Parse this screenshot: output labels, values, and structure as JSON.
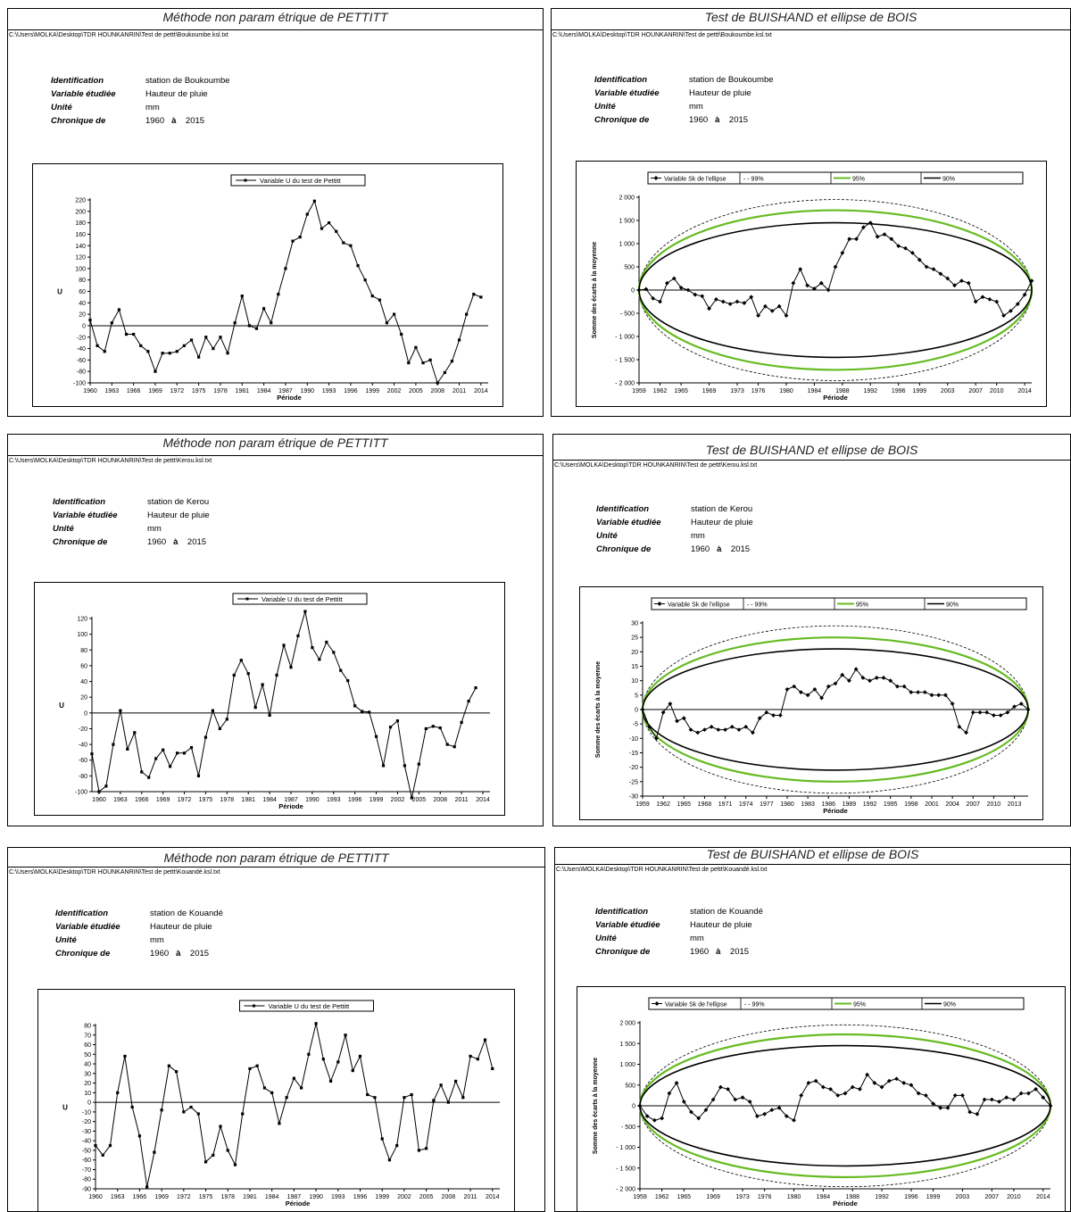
{
  "panels": [
    {
      "title": "Méthode non param étrique de PETTITT",
      "path": "C:\\Users\\MOLKA\\Desktop\\TDR HOUNKANRIN\\Test de pettt\\Boukoumbe.ksl.txt",
      "info": {
        "identification_label": "Identification",
        "identification_value": "station de Boukoumbe",
        "variable_label": "Variable étudiée",
        "variable_value": "Hauteur de pluie",
        "unit_label": "Unité",
        "unit_value": "mm",
        "chronique_label": "Chronique de",
        "year_start": "1960",
        "a_label": "à",
        "year_end": "2015"
      }
    },
    {
      "title": "Test de BUISHAND et ellipse de BOIS",
      "path": "C:\\Users\\MOLKA\\Desktop\\TDR HOUNKANRIN\\Test de pettt\\Boukoumbe.ksl.txt",
      "info": {
        "identification_label": "Identification",
        "identification_value": "station de Boukoumbe",
        "variable_label": "Variable étudiée",
        "variable_value": "Hauteur de pluie",
        "unit_label": "Unité",
        "unit_value": "mm",
        "chronique_label": "Chronique de",
        "year_start": "1960",
        "a_label": "à",
        "year_end": "2015"
      }
    },
    {
      "title": "Méthode non param étrique de PETTITT",
      "path": "C:\\Users\\MOLKA\\Desktop\\TDR HOUNKANRIN\\Test de pettt\\Kerou.ksl.txt",
      "info": {
        "identification_label": "Identification",
        "identification_value": "station de Kerou",
        "variable_label": "Variable étudiée",
        "variable_value": "Hauteur de pluie",
        "unit_label": "Unité",
        "unit_value": "mm",
        "chronique_label": "Chronique de",
        "year_start": "1960",
        "a_label": "à",
        "year_end": "2015"
      }
    },
    {
      "title": "Test de BUISHAND et ellipse de BOIS",
      "path": "C:\\Users\\MOLKA\\Desktop\\TDR HOUNKANRIN\\Test de pettt\\Kerou.ksl.txt",
      "info": {
        "identification_label": "Identification",
        "identification_value": "station de Kerou",
        "variable_label": "Variable étudiée",
        "variable_value": "Hauteur de pluie",
        "unit_label": "Unité",
        "unit_value": "mm",
        "chronique_label": "Chronique de",
        "year_start": "1960",
        "a_label": "à",
        "year_end": "2015"
      }
    },
    {
      "title": "Méthode non param étrique de PETTITT",
      "path": "C:\\Users\\MOLKA\\Desktop\\TDR HOUNKANRIN\\Test de pettt\\Kouandé.ksl.txt",
      "info": {
        "identification_label": "Identification",
        "identification_value": "station de Kouandé",
        "variable_label": "Variable étudiée",
        "variable_value": "Hauteur de pluie",
        "unit_label": "Unité",
        "unit_value": "mm",
        "chronique_label": "Chronique de",
        "year_start": "1960",
        "a_label": "à",
        "year_end": "2015"
      }
    },
    {
      "title": "Test de BUISHAND et ellipse de BOIS",
      "path": "C:\\Users\\MOLKA\\Desktop\\TDR HOUNKANRIN\\Test de pettt\\Kouandé.ksl.txt",
      "info": {
        "identification_label": "Identification",
        "identification_value": "station de Kouandé",
        "variable_label": "Variable étudiée",
        "variable_value": "Hauteur de pluie",
        "unit_label": "Unité",
        "unit_value": "mm",
        "chronique_label": "Chronique de",
        "year_start": "1960",
        "a_label": "à",
        "year_end": "2015"
      }
    }
  ],
  "chart_data": [
    {
      "type": "line",
      "legend": "Variable U du test de Pettitt",
      "ylabel": "U",
      "xlabel": "Période",
      "ylim": [
        -100,
        220
      ],
      "yticks": [
        -100,
        -80,
        -60,
        -40,
        -20,
        0,
        20,
        40,
        60,
        80,
        100,
        120,
        140,
        160,
        180,
        200,
        220
      ],
      "xlim": [
        1960,
        2015
      ],
      "xticks": [
        1960,
        1963,
        1966,
        1969,
        1972,
        1975,
        1978,
        1981,
        1984,
        1987,
        1990,
        1993,
        1996,
        1999,
        2002,
        2005,
        2008,
        2011,
        2014
      ],
      "x": [
        1960,
        1961,
        1962,
        1963,
        1964,
        1965,
        1966,
        1967,
        1968,
        1969,
        1970,
        1971,
        1972,
        1973,
        1974,
        1975,
        1976,
        1977,
        1978,
        1979,
        1980,
        1981,
        1982,
        1983,
        1984,
        1985,
        1986,
        1987,
        1988,
        1989,
        1990,
        1991,
        1992,
        1993,
        1994,
        1995,
        1996,
        1997,
        1998,
        1999,
        2000,
        2001,
        2002,
        2003,
        2004,
        2005,
        2006,
        2007,
        2008,
        2009,
        2010,
        2011,
        2012,
        2013,
        2014
      ],
      "values": [
        10,
        -35,
        -45,
        5,
        28,
        -15,
        -15,
        -35,
        -45,
        -80,
        -48,
        -48,
        -45,
        -35,
        -25,
        -55,
        -20,
        -40,
        -20,
        -48,
        5,
        52,
        0,
        -5,
        30,
        5,
        55,
        100,
        148,
        155,
        195,
        218,
        170,
        180,
        165,
        145,
        140,
        105,
        80,
        52,
        45,
        5,
        20,
        -15,
        -65,
        -38,
        -65,
        -60,
        -100,
        -82,
        -62,
        -25,
        20,
        55,
        50
      ]
    },
    {
      "type": "line",
      "legend": [
        "Variable Sk de l'ellipse",
        "- - 99%",
        "95%",
        "90%"
      ],
      "ylabel": "Somme des écarts à la moyenne",
      "xlabel": "Période",
      "ylim": [
        -2000,
        2000
      ],
      "yticks": [
        -2000,
        -1500,
        -1000,
        -500,
        0,
        500,
        1000,
        1500,
        2000
      ],
      "ytick_labels": [
        "- 2 000",
        "- 1 500",
        "- 1 000",
        "- 500",
        "0",
        "500",
        "1 000",
        "1 500",
        "2 000"
      ],
      "xlim": [
        1959,
        2015
      ],
      "xticks": [
        1959,
        1962,
        1965,
        1969,
        1973,
        1976,
        1980,
        1984,
        1988,
        1992,
        1996,
        1999,
        2003,
        2007,
        2010,
        2014
      ],
      "ellipse_half_height": {
        "99%": 1950,
        "95%": 1720,
        "90%": 1450
      },
      "colors": {
        "99%": "#000000",
        "95%": "#66bb22",
        "90%": "#000000"
      },
      "x": [
        1959,
        1960,
        1961,
        1962,
        1963,
        1964,
        1965,
        1966,
        1967,
        1968,
        1969,
        1970,
        1971,
        1972,
        1973,
        1974,
        1975,
        1976,
        1977,
        1978,
        1979,
        1980,
        1981,
        1982,
        1983,
        1984,
        1985,
        1986,
        1987,
        1988,
        1989,
        1990,
        1991,
        1992,
        1993,
        1994,
        1995,
        1996,
        1997,
        1998,
        1999,
        2000,
        2001,
        2002,
        2003,
        2004,
        2005,
        2006,
        2007,
        2008,
        2009,
        2010,
        2011,
        2012,
        2013,
        2014,
        2015
      ],
      "values": [
        0,
        20,
        -180,
        -250,
        150,
        250,
        50,
        0,
        -100,
        -130,
        -400,
        -200,
        -250,
        -300,
        -250,
        -280,
        -150,
        -550,
        -350,
        -450,
        -350,
        -550,
        150,
        450,
        100,
        30,
        150,
        0,
        500,
        800,
        1100,
        1100,
        1350,
        1450,
        1150,
        1200,
        1100,
        950,
        900,
        800,
        650,
        500,
        450,
        350,
        250,
        100,
        200,
        150,
        -250,
        -150,
        -200,
        -250,
        -550,
        -450,
        -300,
        -100,
        200
      ]
    },
    {
      "type": "line",
      "legend": "Variable U du test de Pettitt",
      "ylabel": "U",
      "xlabel": "Période",
      "ylim": [
        -100,
        120
      ],
      "yticks": [
        -100,
        -80,
        -60,
        -40,
        -20,
        0,
        20,
        40,
        60,
        80,
        100,
        120
      ],
      "xlim": [
        1959,
        2015
      ],
      "xticks": [
        1960,
        1963,
        1966,
        1969,
        1972,
        1975,
        1978,
        1981,
        1984,
        1987,
        1990,
        1993,
        1996,
        1999,
        2002,
        2005,
        2008,
        2011,
        2014
      ],
      "x": [
        1959,
        1960,
        1961,
        1962,
        1963,
        1964,
        1965,
        1966,
        1967,
        1968,
        1969,
        1970,
        1971,
        1972,
        1973,
        1974,
        1975,
        1976,
        1977,
        1978,
        1979,
        1980,
        1981,
        1982,
        1983,
        1984,
        1985,
        1986,
        1987,
        1988,
        1989,
        1990,
        1991,
        1992,
        1993,
        1994,
        1995,
        1996,
        1997,
        1998,
        1999,
        2000,
        2001,
        2002,
        2003,
        2004,
        2005,
        2006,
        2007,
        2008,
        2009,
        2010,
        2011,
        2012,
        2013,
        2014
      ],
      "values": [
        -52,
        -100,
        -93,
        -40,
        3,
        -46,
        -25,
        -75,
        -82,
        -58,
        -47,
        -68,
        -51,
        -51,
        -44,
        -80,
        -31,
        3,
        -20,
        -8,
        48,
        67,
        50,
        7,
        36,
        -3,
        48,
        86,
        58,
        98,
        129,
        83,
        68,
        90,
        77,
        54,
        41,
        9,
        2,
        1,
        -30,
        -67,
        -18,
        -10,
        -67,
        -108,
        -65,
        -20,
        -17,
        -19,
        -40,
        -43,
        -12,
        15,
        32,
        null
      ]
    },
    {
      "type": "line",
      "legend": [
        "Variable Sk de l'ellipse",
        "- - 99%",
        "95%",
        "90%"
      ],
      "ylabel": "Somme des écarts à la moyenne",
      "xlabel": "Période",
      "ylim": [
        -30,
        30
      ],
      "yticks": [
        -30,
        -25,
        -20,
        -15,
        -10,
        -5,
        0,
        5,
        10,
        15,
        20,
        25,
        30
      ],
      "ytick_labels": [
        "-30",
        "-25",
        "-20",
        "-15",
        "-10",
        "-5",
        "0",
        "5",
        "10",
        "15",
        "20",
        "25",
        "30"
      ],
      "xlim": [
        1959,
        2015
      ],
      "xticks": [
        1959,
        1962,
        1965,
        1968,
        1971,
        1974,
        1977,
        1980,
        1983,
        1986,
        1989,
        1992,
        1995,
        1998,
        2001,
        2004,
        2007,
        2010,
        2013
      ],
      "ellipse_half_height": {
        "99%": 29,
        "95%": 25,
        "90%": 21
      },
      "colors": {
        "99%": "#000000",
        "95%": "#66bb22",
        "90%": "#000000"
      },
      "x": [
        1959,
        1960,
        1961,
        1962,
        1963,
        1964,
        1965,
        1966,
        1967,
        1968,
        1969,
        1970,
        1971,
        1972,
        1973,
        1974,
        1975,
        1976,
        1977,
        1978,
        1979,
        1980,
        1981,
        1982,
        1983,
        1984,
        1985,
        1986,
        1987,
        1988,
        1989,
        1990,
        1991,
        1992,
        1993,
        1994,
        1995,
        1996,
        1997,
        1998,
        1999,
        2000,
        2001,
        2002,
        2003,
        2004,
        2005,
        2006,
        2007,
        2008,
        2009,
        2010,
        2011,
        2012,
        2013,
        2014,
        2015
      ],
      "values": [
        0,
        -6,
        -10,
        -1,
        2,
        -4,
        -3,
        -7,
        -8,
        -7,
        -6,
        -7,
        -7,
        -6,
        -7,
        -6,
        -8,
        -3,
        -1,
        -2,
        -2,
        7,
        8,
        6,
        5,
        7,
        4,
        8,
        9,
        12,
        10,
        14,
        11,
        10,
        11,
        11,
        10,
        8,
        8,
        6,
        6,
        6,
        5,
        5,
        5,
        2,
        -6,
        -8,
        -1,
        -1,
        -1,
        -2,
        -2,
        -1,
        1,
        2,
        0
      ]
    },
    {
      "type": "line",
      "legend": "Variable U du test de Pettitt",
      "ylabel": "U",
      "xlabel": "Période",
      "ylim": [
        -90,
        80
      ],
      "yticks": [
        -90,
        -80,
        -70,
        -60,
        -50,
        -40,
        -30,
        -20,
        -10,
        0,
        10,
        20,
        30,
        40,
        50,
        60,
        70,
        80
      ],
      "xlim": [
        1960,
        2015
      ],
      "xticks": [
        1960,
        1963,
        1966,
        1969,
        1972,
        1975,
        1978,
        1981,
        1984,
        1987,
        1990,
        1993,
        1996,
        1999,
        2002,
        2005,
        2008,
        2011,
        2014
      ],
      "x": [
        1960,
        1961,
        1962,
        1963,
        1964,
        1965,
        1966,
        1967,
        1968,
        1969,
        1970,
        1971,
        1972,
        1973,
        1974,
        1975,
        1976,
        1977,
        1978,
        1979,
        1980,
        1981,
        1982,
        1983,
        1984,
        1985,
        1986,
        1987,
        1988,
        1989,
        1990,
        1991,
        1992,
        1993,
        1994,
        1995,
        1996,
        1997,
        1998,
        1999,
        2000,
        2001,
        2002,
        2003,
        2004,
        2005,
        2006,
        2007,
        2008,
        2009,
        2010,
        2011,
        2012,
        2013,
        2014
      ],
      "values": [
        -45,
        -55,
        -45,
        10,
        48,
        -5,
        -35,
        -88,
        -52,
        -8,
        38,
        32,
        -10,
        -5,
        -12,
        -62,
        -55,
        -25,
        -50,
        -65,
        -12,
        35,
        38,
        15,
        10,
        -22,
        5,
        25,
        15,
        50,
        82,
        45,
        22,
        42,
        70,
        33,
        48,
        8,
        5,
        -38,
        -60,
        -45,
        5,
        8,
        -50,
        -48,
        2,
        18,
        0,
        22,
        5,
        48,
        45,
        65,
        35
      ]
    },
    {
      "type": "line",
      "legend": [
        "Variable Sk de l'ellipse",
        "- - 99%",
        "95%",
        "90%"
      ],
      "ylabel": "Somme des écarts à la moyenne",
      "xlabel": "Période",
      "ylim": [
        -2000,
        2000
      ],
      "yticks": [
        -2000,
        -1500,
        -1000,
        -500,
        0,
        500,
        1000,
        1500,
        2000
      ],
      "ytick_labels": [
        "- 2 000",
        "- 1 500",
        "- 1 000",
        "- 500",
        "0",
        "500",
        "1 000",
        "1 500",
        "2 000"
      ],
      "xlim": [
        1959,
        2015
      ],
      "xticks": [
        1959,
        1962,
        1965,
        1969,
        1973,
        1976,
        1980,
        1984,
        1988,
        1992,
        1996,
        1999,
        2003,
        2007,
        2010,
        2014
      ],
      "ellipse_half_height": {
        "99%": 1950,
        "95%": 1720,
        "90%": 1450
      },
      "colors": {
        "99%": "#000000",
        "95%": "#66bb22",
        "90%": "#000000"
      },
      "x": [
        1959,
        1960,
        1961,
        1962,
        1963,
        1964,
        1965,
        1966,
        1967,
        1968,
        1969,
        1970,
        1971,
        1972,
        1973,
        1974,
        1975,
        1976,
        1977,
        1978,
        1979,
        1980,
        1981,
        1982,
        1983,
        1984,
        1985,
        1986,
        1987,
        1988,
        1989,
        1990,
        1991,
        1992,
        1993,
        1994,
        1995,
        1996,
        1997,
        1998,
        1999,
        2000,
        2001,
        2002,
        2003,
        2004,
        2005,
        2006,
        2007,
        2008,
        2009,
        2010,
        2011,
        2012,
        2013,
        2014,
        2015
      ],
      "values": [
        0,
        -250,
        -350,
        -300,
        300,
        550,
        100,
        -150,
        -300,
        -100,
        150,
        450,
        400,
        150,
        200,
        100,
        -250,
        -200,
        -100,
        -50,
        -250,
        -350,
        250,
        550,
        600,
        450,
        400,
        250,
        300,
        450,
        400,
        750,
        550,
        450,
        600,
        650,
        550,
        500,
        300,
        250,
        50,
        -50,
        -50,
        250,
        250,
        -150,
        -200,
        150,
        150,
        100,
        200,
        150,
        300,
        300,
        400,
        200,
        0
      ]
    }
  ]
}
